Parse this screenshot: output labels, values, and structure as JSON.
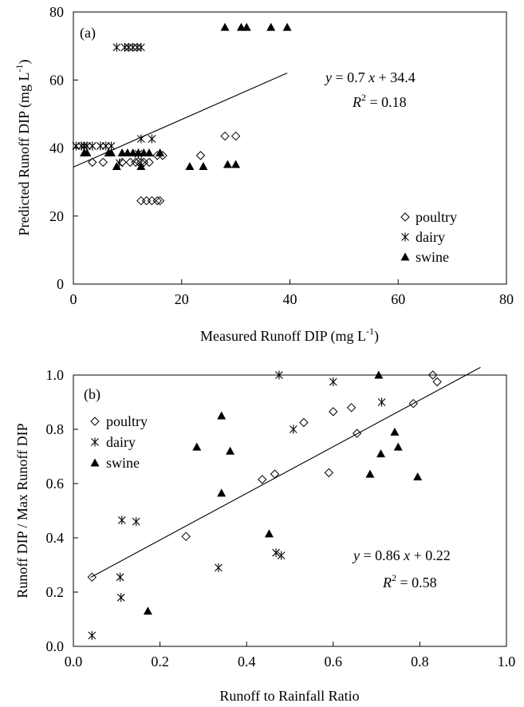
{
  "chart_data": [
    {
      "type": "scatter",
      "panel_label": "(a)",
      "xlabel": "Measured Runoff DIP (mg L",
      "ylabel": "Predicted Runoff DIP (mg L",
      "unit_superscript": "-1",
      "unit_close": ")",
      "xlim": [
        0,
        80
      ],
      "ylim": [
        0,
        80
      ],
      "xticks": [
        0,
        20,
        40,
        60,
        80
      ],
      "yticks": [
        0,
        20,
        40,
        60,
        80
      ],
      "legend_position": "bottom-right",
      "grid": false,
      "series": [
        {
          "name": "poultry",
          "marker": "diamond-open",
          "points": [
            [
              3.5,
              35.8
            ],
            [
              5.5,
              35.8
            ],
            [
              9,
              35.8
            ],
            [
              10.5,
              35.8
            ],
            [
              11.5,
              35.8
            ],
            [
              12.5,
              35.8
            ],
            [
              14,
              35.8
            ],
            [
              15.5,
              37.8
            ],
            [
              16.5,
              37.8
            ],
            [
              12.5,
              24.5
            ],
            [
              13.5,
              24.5
            ],
            [
              14.5,
              24.5
            ],
            [
              15.5,
              24.5
            ],
            [
              16,
              24.5
            ],
            [
              23.5,
              37.8
            ],
            [
              28,
              43.5
            ],
            [
              30,
              43.5
            ],
            [
              12,
              36
            ],
            [
              13,
              35.8
            ]
          ]
        },
        {
          "name": "dairy",
          "marker": "asterisk",
          "points": [
            [
              0.5,
              40.6
            ],
            [
              1.5,
              40.6
            ],
            [
              2,
              40.6
            ],
            [
              2.5,
              40.6
            ],
            [
              3.5,
              40.6
            ],
            [
              5,
              40.6
            ],
            [
              6,
              40.6
            ],
            [
              7,
              40.6
            ],
            [
              8,
              69.6
            ],
            [
              9.5,
              69.6
            ],
            [
              10.2,
              69.6
            ],
            [
              11,
              69.6
            ],
            [
              11.8,
              69.6
            ],
            [
              12.5,
              69.6
            ],
            [
              8.5,
              35.6
            ],
            [
              12.5,
              42.7
            ],
            [
              14.5,
              42.7
            ],
            [
              12,
              38.3
            ]
          ]
        },
        {
          "name": "swine",
          "marker": "triangle-filled",
          "points": [
            [
              2,
              38.6
            ],
            [
              2.5,
              38.6
            ],
            [
              6.5,
              38.6
            ],
            [
              7,
              38.6
            ],
            [
              8,
              34.6
            ],
            [
              9,
              38.6
            ],
            [
              10,
              38.6
            ],
            [
              11,
              38.6
            ],
            [
              12,
              38.6
            ],
            [
              12.5,
              34.6
            ],
            [
              13,
              38.6
            ],
            [
              14,
              38.6
            ],
            [
              16,
              38.6
            ],
            [
              21.5,
              34.6
            ],
            [
              24,
              34.6
            ],
            [
              28,
              75.5
            ],
            [
              31,
              75.5
            ],
            [
              32,
              75.5
            ],
            [
              36.5,
              75.5
            ],
            [
              39.5,
              75.5
            ],
            [
              28.5,
              35.2
            ],
            [
              30,
              35.2
            ]
          ]
        }
      ],
      "fit": {
        "slope": 0.7,
        "intercept": 34.4,
        "x_range": [
          0,
          39.5
        ],
        "eq_y": "y",
        "eq_mid": " = 0.7 ",
        "eq_x": "x",
        "eq_tail": " + 34.4",
        "r2_R": "R",
        "r2_sup": "2",
        "r2_tail": " = 0.18"
      }
    },
    {
      "type": "scatter",
      "panel_label": "(b)",
      "xlabel": "Runoff to Rainfall Ratio",
      "ylabel": "Runoff DIP / Max Runoff DIP",
      "xlim": [
        0.0,
        1.0
      ],
      "ylim": [
        0.0,
        1.0
      ],
      "xticks": [
        "0.0",
        "0.2",
        "0.4",
        "0.6",
        "0.8",
        "1.0"
      ],
      "yticks": [
        "0.0",
        "0.2",
        "0.4",
        "0.6",
        "0.8",
        "1.0"
      ],
      "legend_position": "top-left",
      "grid": false,
      "series": [
        {
          "name": "poultry",
          "marker": "diamond-open",
          "points": [
            [
              0.043,
              0.255
            ],
            [
              0.26,
              0.405
            ],
            [
              0.436,
              0.615
            ],
            [
              0.465,
              0.635
            ],
            [
              0.532,
              0.825
            ],
            [
              0.59,
              0.64
            ],
            [
              0.6,
              0.865
            ],
            [
              0.642,
              0.88
            ],
            [
              0.655,
              0.785
            ],
            [
              0.785,
              0.895
            ],
            [
              0.83,
              1.0
            ],
            [
              0.84,
              0.975
            ]
          ]
        },
        {
          "name": "dairy",
          "marker": "asterisk",
          "points": [
            [
              0.043,
              0.04
            ],
            [
              0.108,
              0.255
            ],
            [
              0.11,
              0.18
            ],
            [
              0.112,
              0.465
            ],
            [
              0.145,
              0.46
            ],
            [
              0.335,
              0.29
            ],
            [
              0.468,
              0.345
            ],
            [
              0.48,
              0.335
            ],
            [
              0.475,
              1.0
            ],
            [
              0.508,
              0.8
            ],
            [
              0.6,
              0.975
            ],
            [
              0.712,
              0.9
            ]
          ]
        },
        {
          "name": "swine",
          "marker": "triangle-filled",
          "points": [
            [
              0.172,
              0.13
            ],
            [
              0.285,
              0.735
            ],
            [
              0.342,
              0.85
            ],
            [
              0.342,
              0.565
            ],
            [
              0.362,
              0.72
            ],
            [
              0.452,
              0.415
            ],
            [
              0.685,
              0.635
            ],
            [
              0.705,
              1.0
            ],
            [
              0.71,
              0.71
            ],
            [
              0.742,
              0.79
            ],
            [
              0.75,
              0.735
            ],
            [
              0.795,
              0.625
            ]
          ]
        }
      ],
      "fit": {
        "slope": 0.86,
        "intercept": 0.22,
        "x_range": [
          0.04,
          0.94
        ],
        "eq_y": "y",
        "eq_mid": " = 0.86 ",
        "eq_x": "x",
        "eq_tail": " + 0.22",
        "r2_R": "R",
        "r2_sup": "2",
        "r2_tail": " = 0.58"
      }
    }
  ]
}
